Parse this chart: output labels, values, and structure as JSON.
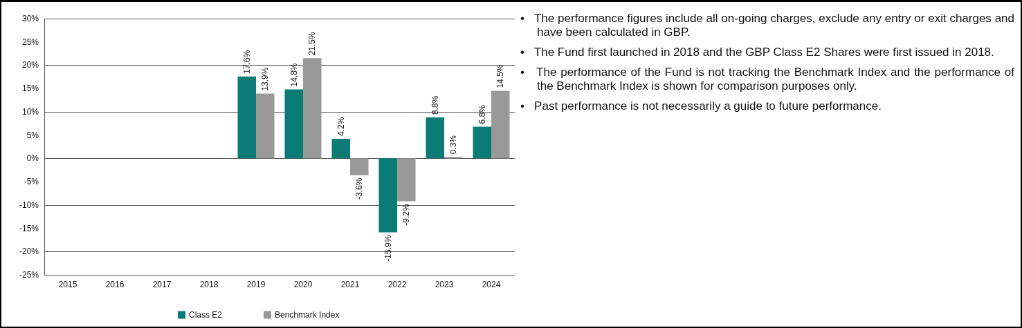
{
  "chart_data": {
    "type": "bar",
    "categories": [
      "2015",
      "2016",
      "2017",
      "2018",
      "2019",
      "2020",
      "2021",
      "2022",
      "2023",
      "2024"
    ],
    "series": [
      {
        "name": "Class E2",
        "color": "#0b7c75",
        "values": [
          null,
          null,
          null,
          null,
          17.6,
          14.8,
          4.2,
          -15.9,
          8.8,
          6.8
        ],
        "value_labels": [
          null,
          null,
          null,
          null,
          "17.6%",
          "14.8%",
          "4.2%",
          "-15.9%",
          "8.8%",
          "6.8%"
        ]
      },
      {
        "name": "Benchmark Index",
        "color": "#999999",
        "values": [
          null,
          null,
          null,
          null,
          13.9,
          21.5,
          -3.6,
          -9.2,
          0.3,
          14.5
        ],
        "value_labels": [
          null,
          null,
          null,
          null,
          "13.9%",
          "21.5%",
          "-3.6%",
          "-9.2%",
          "0.3%",
          "14.5%"
        ]
      }
    ],
    "ylim": [
      -25,
      30
    ],
    "yticks": [
      {
        "value": -25,
        "label": "-25%"
      },
      {
        "value": -20,
        "label": "-20%"
      },
      {
        "value": -15,
        "label": "-15%"
      },
      {
        "value": -10,
        "label": "-10%"
      },
      {
        "value": -5,
        "label": "-5%"
      },
      {
        "value": 0,
        "label": "0%"
      },
      {
        "value": 5,
        "label": "5%"
      },
      {
        "value": 10,
        "label": "10%"
      },
      {
        "value": 15,
        "label": "15%"
      },
      {
        "value": 20,
        "label": "20%"
      },
      {
        "value": 25,
        "label": "25%"
      },
      {
        "value": 30,
        "label": "30%"
      }
    ],
    "grid": "y",
    "legend": "bottom",
    "annotations": [
      "•   The performance figures include all on-going charges, exclude any entry or exit charges and have been calculated in GBP.",
      "•   The Fund first launched in 2018 and the GBP Class E2 Shares were first issued in 2018.",
      "•   The performance of the Fund is not tracking the Benchmark Index and the performance of the Benchmark Index is shown for comparison purposes only.",
      "•   Past performance is not necessarily a guide to future performance."
    ]
  }
}
